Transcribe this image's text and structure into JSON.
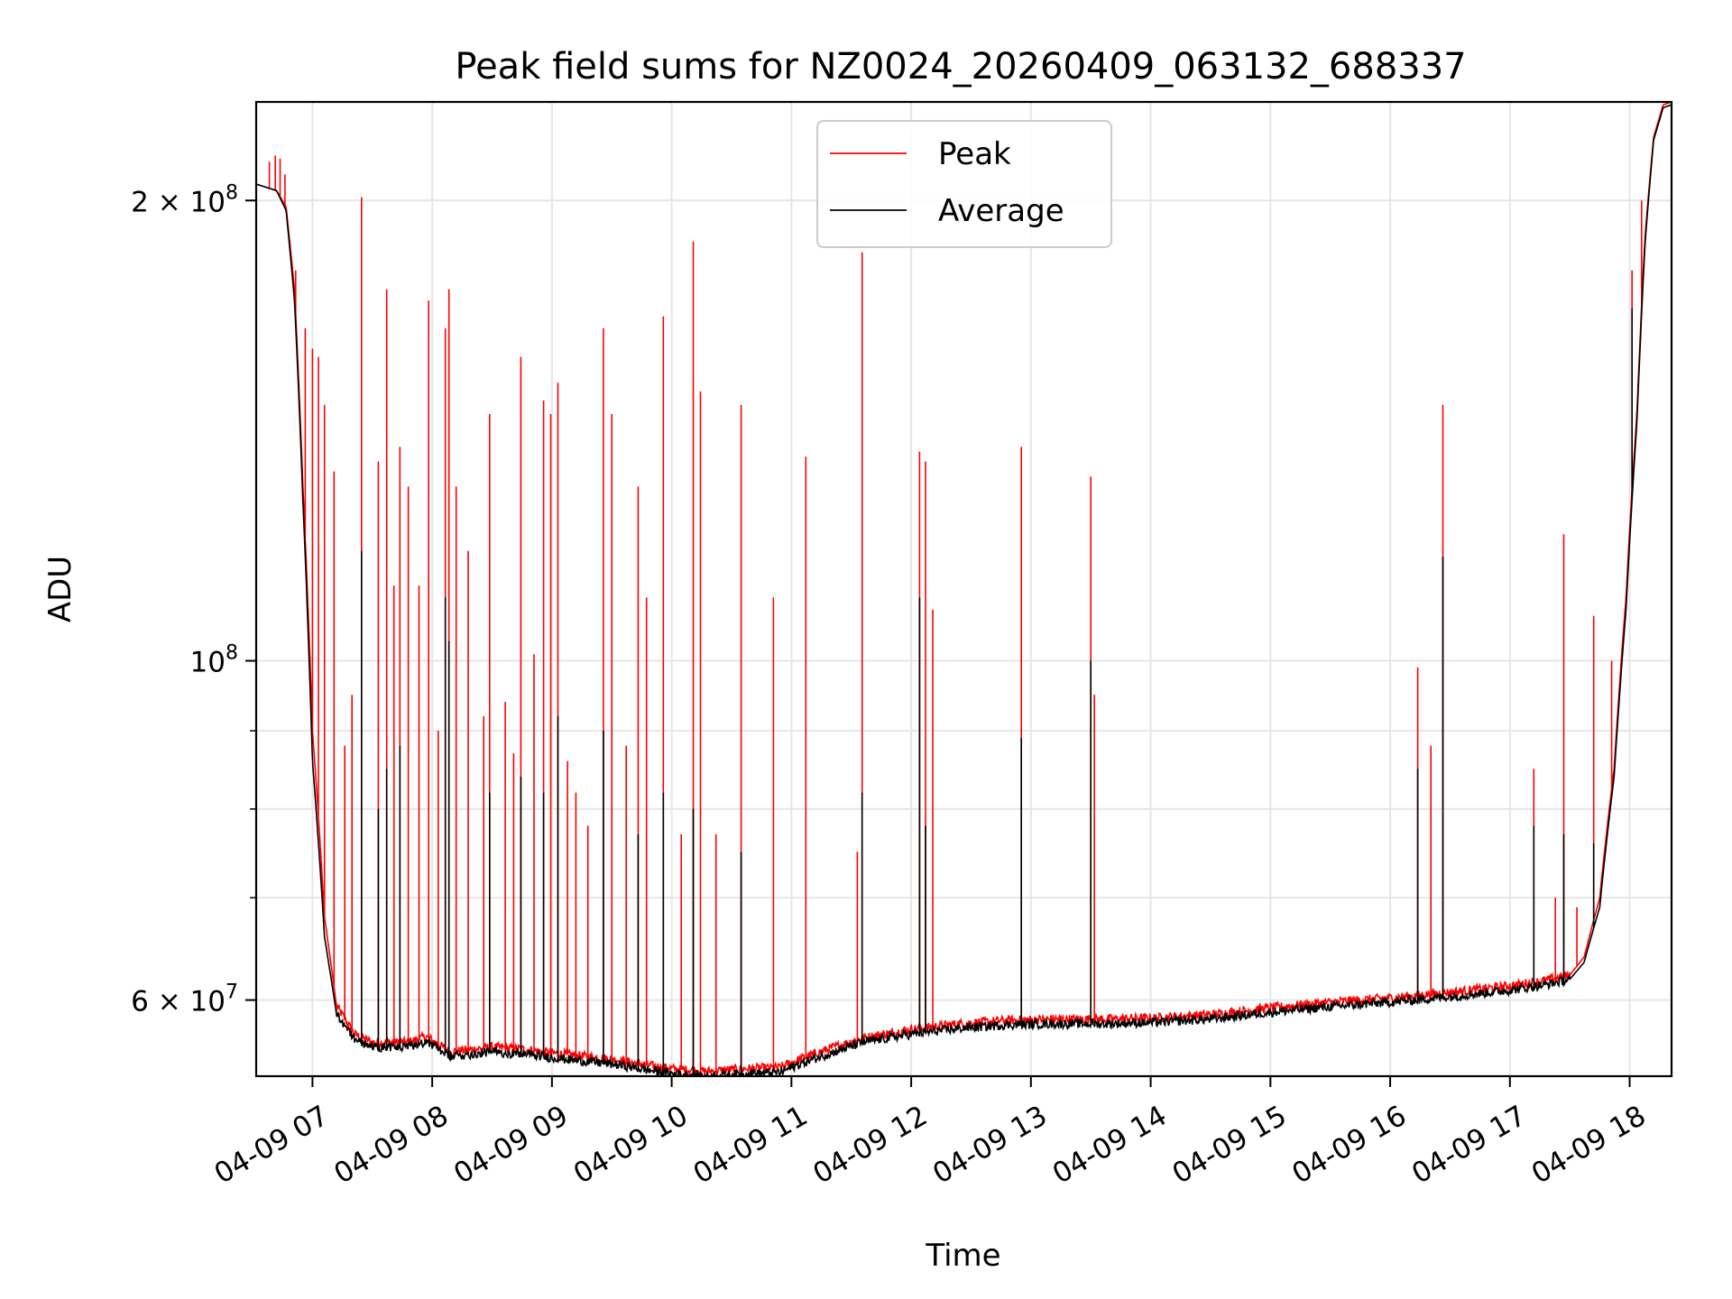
{
  "chart_data": {
    "type": "line",
    "title": "Peak field sums for NZ0024_20260409_063132_688337",
    "xlabel": "Time",
    "ylabel": "ADU",
    "yscale": "log",
    "ylim": [
      53500000,
      232000000
    ],
    "xlim": [
      6.53,
      18.35
    ],
    "x_unit": "hour of 2026-04-09",
    "grid": true,
    "legend_position": "upper center",
    "x_ticks": [
      {
        "value": 7,
        "label": "04-09 07"
      },
      {
        "value": 8,
        "label": "04-09 08"
      },
      {
        "value": 9,
        "label": "04-09 09"
      },
      {
        "value": 10,
        "label": "04-09 10"
      },
      {
        "value": 11,
        "label": "04-09 11"
      },
      {
        "value": 12,
        "label": "04-09 12"
      },
      {
        "value": 13,
        "label": "04-09 13"
      },
      {
        "value": 14,
        "label": "04-09 14"
      },
      {
        "value": 15,
        "label": "04-09 15"
      },
      {
        "value": 16,
        "label": "04-09 16"
      },
      {
        "value": 17,
        "label": "04-09 17"
      },
      {
        "value": 18,
        "label": "04-09 18"
      }
    ],
    "y_ticks_major": [
      {
        "value": 200000000,
        "mantissa": "2",
        "base": "10",
        "exp": "8"
      },
      {
        "value": 100000000,
        "mantissa": "",
        "base": "10",
        "exp": "8"
      },
      {
        "value": 60000000,
        "mantissa": "6",
        "base": "10",
        "exp": "7"
      }
    ],
    "y_ticks_minor": [
      70000000,
      80000000,
      90000000
    ],
    "series": [
      {
        "name": "Peak",
        "color": "#ff0000",
        "baseline": [
          [
            6.53,
            205000000
          ],
          [
            6.7,
            203000000
          ],
          [
            6.78,
            198000000
          ],
          [
            6.85,
            175000000
          ],
          [
            6.92,
            130000000
          ],
          [
            7.0,
            90000000
          ],
          [
            7.1,
            68000000
          ],
          [
            7.2,
            59500000
          ],
          [
            7.35,
            57000000
          ],
          [
            7.5,
            56300000
          ],
          [
            7.8,
            56300000
          ],
          [
            7.95,
            56800000
          ],
          [
            8.15,
            55500000
          ],
          [
            8.5,
            55900000
          ],
          [
            8.8,
            55700000
          ],
          [
            9.0,
            55400000
          ],
          [
            9.5,
            54900000
          ],
          [
            9.8,
            54400000
          ],
          [
            10.0,
            54100000
          ],
          [
            10.3,
            53900000
          ],
          [
            10.6,
            54100000
          ],
          [
            10.9,
            54200000
          ],
          [
            11.1,
            55000000
          ],
          [
            11.3,
            55700000
          ],
          [
            11.6,
            56700000
          ],
          [
            12.0,
            57400000
          ],
          [
            12.4,
            57900000
          ],
          [
            12.8,
            58200000
          ],
          [
            13.2,
            58300000
          ],
          [
            13.6,
            58300000
          ],
          [
            14.0,
            58400000
          ],
          [
            14.5,
            58700000
          ],
          [
            15.0,
            59300000
          ],
          [
            15.5,
            59800000
          ],
          [
            16.0,
            60200000
          ],
          [
            16.5,
            60700000
          ],
          [
            17.0,
            61300000
          ],
          [
            17.3,
            61800000
          ],
          [
            17.5,
            62300000
          ],
          [
            17.62,
            64000000
          ],
          [
            17.75,
            70000000
          ],
          [
            17.87,
            85000000
          ],
          [
            17.97,
            110000000
          ],
          [
            18.06,
            145000000
          ],
          [
            18.13,
            190000000
          ],
          [
            18.2,
            220000000
          ],
          [
            18.28,
            231000000
          ],
          [
            18.35,
            232000000
          ]
        ],
        "spikes": [
          [
            6.64,
            212000000
          ],
          [
            6.69,
            214000000
          ],
          [
            6.73,
            213000000
          ],
          [
            6.77,
            208000000
          ],
          [
            6.86,
            180000000
          ],
          [
            6.94,
            165000000
          ],
          [
            7.0,
            160000000
          ],
          [
            7.05,
            158000000
          ],
          [
            7.1,
            147000000
          ],
          [
            7.18,
            133000000
          ],
          [
            7.27,
            88000000
          ],
          [
            7.33,
            95000000
          ],
          [
            7.41,
            201000000
          ],
          [
            7.55,
            135000000
          ],
          [
            7.62,
            175000000
          ],
          [
            7.68,
            112000000
          ],
          [
            7.73,
            138000000
          ],
          [
            7.8,
            130000000
          ],
          [
            7.89,
            112000000
          ],
          [
            7.97,
            172000000
          ],
          [
            8.05,
            90000000
          ],
          [
            8.11,
            165000000
          ],
          [
            8.14,
            175000000
          ],
          [
            8.2,
            130000000
          ],
          [
            8.3,
            118000000
          ],
          [
            8.43,
            92000000
          ],
          [
            8.48,
            145000000
          ],
          [
            8.61,
            94000000
          ],
          [
            8.68,
            87000000
          ],
          [
            8.74,
            158000000
          ],
          [
            8.85,
            101000000
          ],
          [
            8.93,
            148000000
          ],
          [
            8.99,
            145000000
          ],
          [
            9.05,
            152000000
          ],
          [
            9.13,
            86000000
          ],
          [
            9.2,
            82000000
          ],
          [
            9.3,
            78000000
          ],
          [
            9.43,
            165000000
          ],
          [
            9.5,
            145000000
          ],
          [
            9.62,
            88000000
          ],
          [
            9.72,
            130000000
          ],
          [
            9.79,
            110000000
          ],
          [
            9.93,
            168000000
          ],
          [
            10.08,
            77000000
          ],
          [
            10.18,
            188000000
          ],
          [
            10.24,
            150000000
          ],
          [
            10.37,
            77000000
          ],
          [
            10.58,
            147000000
          ],
          [
            10.85,
            110000000
          ],
          [
            11.12,
            136000000
          ],
          [
            11.55,
            75000000
          ],
          [
            11.59,
            185000000
          ],
          [
            12.07,
            137000000
          ],
          [
            12.12,
            135000000
          ],
          [
            12.18,
            108000000
          ],
          [
            12.92,
            138000000
          ],
          [
            13.5,
            132000000
          ],
          [
            13.53,
            95000000
          ],
          [
            16.23,
            99000000
          ],
          [
            16.34,
            88000000
          ],
          [
            16.44,
            147000000
          ],
          [
            17.2,
            85000000
          ],
          [
            17.38,
            70000000
          ],
          [
            17.45,
            121000000
          ],
          [
            17.56,
            69000000
          ],
          [
            17.7,
            107000000
          ],
          [
            17.85,
            100000000
          ],
          [
            18.02,
            180000000
          ],
          [
            18.1,
            200000000
          ]
        ]
      },
      {
        "name": "Average",
        "color": "#000000",
        "baseline": [
          [
            6.53,
            205000000
          ],
          [
            6.7,
            203000000
          ],
          [
            6.78,
            197000000
          ],
          [
            6.85,
            172000000
          ],
          [
            6.92,
            127000000
          ],
          [
            7.0,
            86000000
          ],
          [
            7.1,
            66000000
          ],
          [
            7.2,
            58800000
          ],
          [
            7.35,
            56600000
          ],
          [
            7.5,
            55900000
          ],
          [
            7.8,
            55900000
          ],
          [
            7.95,
            56400000
          ],
          [
            8.15,
            55100000
          ],
          [
            8.5,
            55500000
          ],
          [
            8.8,
            55300000
          ],
          [
            9.0,
            55000000
          ],
          [
            9.5,
            54500000
          ],
          [
            9.8,
            54000000
          ],
          [
            10.0,
            53700000
          ],
          [
            10.3,
            53500000
          ],
          [
            10.6,
            53700000
          ],
          [
            10.9,
            53800000
          ],
          [
            11.1,
            54600000
          ],
          [
            11.3,
            55300000
          ],
          [
            11.6,
            56300000
          ],
          [
            12.0,
            57000000
          ],
          [
            12.4,
            57500000
          ],
          [
            12.8,
            57800000
          ],
          [
            13.2,
            57900000
          ],
          [
            13.6,
            57900000
          ],
          [
            14.0,
            58000000
          ],
          [
            14.5,
            58300000
          ],
          [
            15.0,
            58900000
          ],
          [
            15.5,
            59400000
          ],
          [
            16.0,
            59800000
          ],
          [
            16.5,
            60300000
          ],
          [
            17.0,
            60900000
          ],
          [
            17.3,
            61400000
          ],
          [
            17.5,
            61900000
          ],
          [
            17.62,
            63500000
          ],
          [
            17.75,
            69000000
          ],
          [
            17.87,
            84000000
          ],
          [
            17.97,
            108000000
          ],
          [
            18.06,
            143000000
          ],
          [
            18.13,
            188000000
          ],
          [
            18.2,
            219000000
          ],
          [
            18.28,
            230000000
          ],
          [
            18.35,
            231000000
          ]
        ],
        "spikes": [
          [
            7.41,
            118000000
          ],
          [
            7.55,
            80000000
          ],
          [
            7.62,
            85000000
          ],
          [
            7.73,
            88000000
          ],
          [
            8.11,
            110000000
          ],
          [
            8.14,
            103000000
          ],
          [
            8.48,
            82000000
          ],
          [
            8.74,
            84000000
          ],
          [
            8.93,
            82000000
          ],
          [
            9.05,
            92000000
          ],
          [
            9.43,
            90000000
          ],
          [
            9.72,
            77000000
          ],
          [
            9.93,
            82000000
          ],
          [
            10.18,
            80000000
          ],
          [
            10.58,
            75000000
          ],
          [
            11.59,
            82000000
          ],
          [
            12.07,
            110000000
          ],
          [
            12.12,
            78000000
          ],
          [
            12.92,
            89000000
          ],
          [
            13.5,
            100000000
          ],
          [
            16.23,
            85000000
          ],
          [
            16.44,
            117000000
          ],
          [
            17.2,
            78000000
          ],
          [
            17.45,
            77000000
          ],
          [
            17.7,
            76000000
          ],
          [
            18.02,
            170000000
          ]
        ]
      }
    ]
  }
}
